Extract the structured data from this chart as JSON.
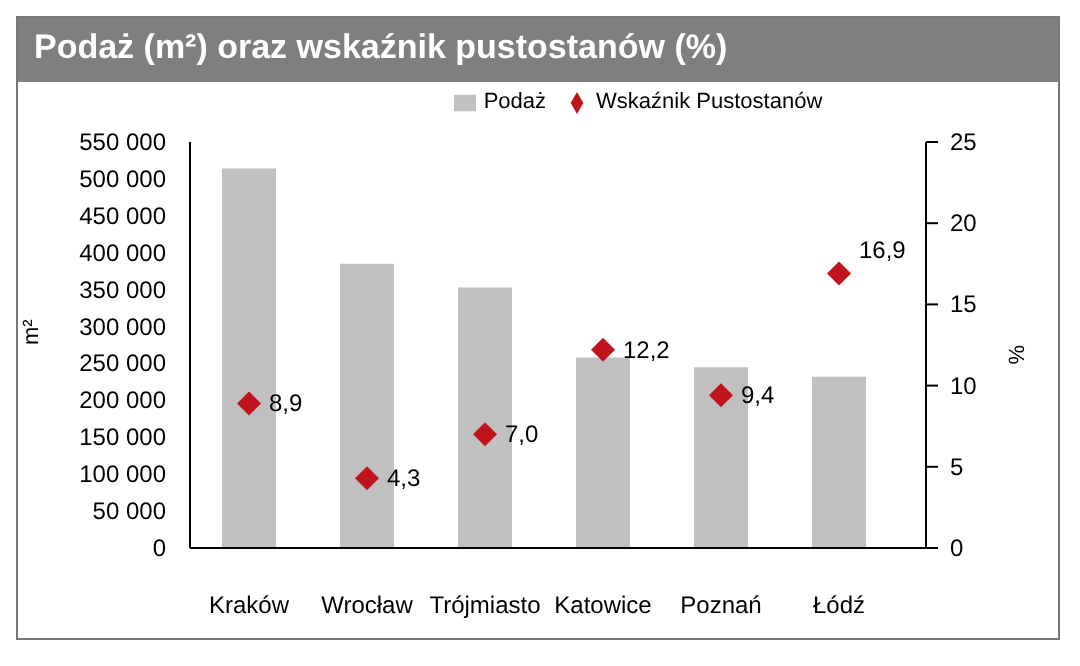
{
  "chart_data": {
    "type": "bar",
    "title": "Podaż (m²) oraz wskaźnik pustostanów (%)",
    "ylabel": "m²",
    "y2label": "%",
    "categories": [
      "Kraków",
      "Wrocław",
      "Trójmiasto",
      "Katowice",
      "Poznań",
      "Łódź"
    ],
    "series": [
      {
        "name": "Podaż",
        "color": "#c0c0c0",
        "values": [
          514000,
          385000,
          353000,
          258000,
          245000,
          232000
        ]
      },
      {
        "name": "Wskaźnik Pustostanów",
        "type": "scatter",
        "axis": "y2",
        "marker": "diamond",
        "color": "#c0141c",
        "values": [
          8.9,
          4.3,
          7.0,
          12.2,
          9.4,
          16.9
        ],
        "value_labels": [
          "8,9",
          "4,3",
          "7,0",
          "12,2",
          "9,4",
          "16,9"
        ]
      }
    ],
    "ylim": [
      0,
      550000
    ],
    "yticks": [
      {
        "value": 0,
        "label": "0"
      },
      {
        "value": 50000,
        "label": "50 000"
      },
      {
        "value": 100000,
        "label": "100 000"
      },
      {
        "value": 150000,
        "label": "150 000"
      },
      {
        "value": 200000,
        "label": "200 000"
      },
      {
        "value": 250000,
        "label": "250 000"
      },
      {
        "value": 300000,
        "label": "300 000"
      },
      {
        "value": 350000,
        "label": "350 000"
      },
      {
        "value": 400000,
        "label": "400 000"
      },
      {
        "value": 450000,
        "label": "450 000"
      },
      {
        "value": 500000,
        "label": "500 000"
      },
      {
        "value": 550000,
        "label": "550 000"
      }
    ],
    "y2lim": [
      0,
      25
    ],
    "y2ticks": [
      0,
      5,
      10,
      15,
      20,
      25
    ],
    "legend": "top"
  }
}
